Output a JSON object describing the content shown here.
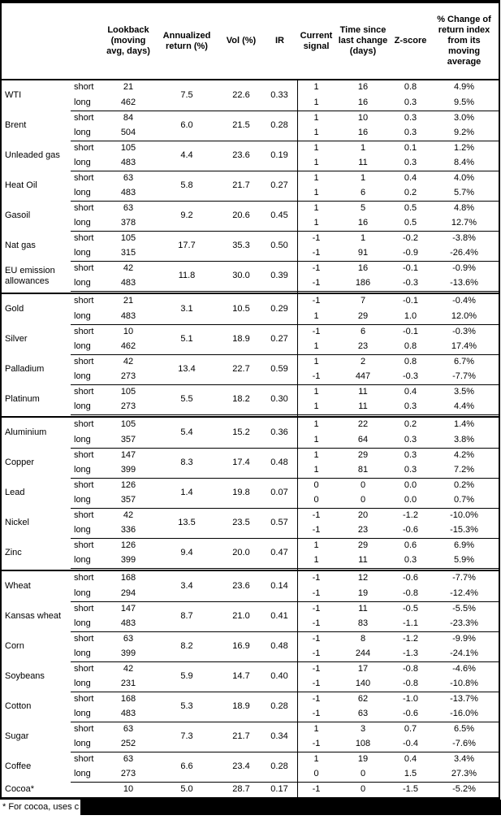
{
  "header": {
    "name": "",
    "side": "",
    "lookback": "Lookback\n(moving\navg, days)",
    "annualized": "Annualized\nreturn (%)",
    "vol": "Vol (%)",
    "ir": "IR",
    "signal": "Current\nsignal",
    "time_since": "Time since\nlast change\n(days)",
    "zscore": "Z-score",
    "pct_change": "% Change of\nreturn index\nfrom its\nmoving\naverage"
  },
  "sections": [
    [
      {
        "name": "WTI",
        "annualized": "7.5",
        "vol": "22.6",
        "ir": "0.33",
        "rows": [
          {
            "side": "short",
            "lookback": "21",
            "signal": "1",
            "time_since": "16",
            "zscore": "0.8",
            "pct_change": "4.9%"
          },
          {
            "side": "long",
            "lookback": "462",
            "signal": "1",
            "time_since": "16",
            "zscore": "0.3",
            "pct_change": "9.5%"
          }
        ]
      },
      {
        "name": "Brent",
        "annualized": "6.0",
        "vol": "21.5",
        "ir": "0.28",
        "rows": [
          {
            "side": "short",
            "lookback": "84",
            "signal": "1",
            "time_since": "10",
            "zscore": "0.3",
            "pct_change": "3.0%"
          },
          {
            "side": "long",
            "lookback": "504",
            "signal": "1",
            "time_since": "16",
            "zscore": "0.3",
            "pct_change": "9.2%"
          }
        ]
      },
      {
        "name": "Unleaded gas",
        "annualized": "4.4",
        "vol": "23.6",
        "ir": "0.19",
        "rows": [
          {
            "side": "short",
            "lookback": "105",
            "signal": "1",
            "time_since": "1",
            "zscore": "0.1",
            "pct_change": "1.2%"
          },
          {
            "side": "long",
            "lookback": "483",
            "signal": "1",
            "time_since": "11",
            "zscore": "0.3",
            "pct_change": "8.4%"
          }
        ]
      },
      {
        "name": "Heat Oil",
        "annualized": "5.8",
        "vol": "21.7",
        "ir": "0.27",
        "rows": [
          {
            "side": "short",
            "lookback": "63",
            "signal": "1",
            "time_since": "1",
            "zscore": "0.4",
            "pct_change": "4.0%"
          },
          {
            "side": "long",
            "lookback": "483",
            "signal": "1",
            "time_since": "6",
            "zscore": "0.2",
            "pct_change": "5.7%"
          }
        ]
      },
      {
        "name": "Gasoil",
        "annualized": "9.2",
        "vol": "20.6",
        "ir": "0.45",
        "rows": [
          {
            "side": "short",
            "lookback": "63",
            "signal": "1",
            "time_since": "5",
            "zscore": "0.5",
            "pct_change": "4.8%"
          },
          {
            "side": "long",
            "lookback": "378",
            "signal": "1",
            "time_since": "16",
            "zscore": "0.5",
            "pct_change": "12.7%"
          }
        ]
      },
      {
        "name": "Nat gas",
        "annualized": "17.7",
        "vol": "35.3",
        "ir": "0.50",
        "rows": [
          {
            "side": "short",
            "lookback": "105",
            "signal": "-1",
            "time_since": "1",
            "zscore": "-0.2",
            "pct_change": "-3.8%"
          },
          {
            "side": "long",
            "lookback": "315",
            "signal": "-1",
            "time_since": "91",
            "zscore": "-0.9",
            "pct_change": "-26.4%"
          }
        ]
      },
      {
        "name": "EU emission allowances",
        "annualized": "11.8",
        "vol": "30.0",
        "ir": "0.39",
        "rows": [
          {
            "side": "short",
            "lookback": "42",
            "signal": "-1",
            "time_since": "16",
            "zscore": "-0.1",
            "pct_change": "-0.9%"
          },
          {
            "side": "long",
            "lookback": "483",
            "signal": "-1",
            "time_since": "186",
            "zscore": "-0.3",
            "pct_change": "-13.6%"
          }
        ]
      }
    ],
    [
      {
        "name": "Gold",
        "annualized": "3.1",
        "vol": "10.5",
        "ir": "0.29",
        "rows": [
          {
            "side": "short",
            "lookback": "21",
            "signal": "-1",
            "time_since": "7",
            "zscore": "-0.1",
            "pct_change": "-0.4%"
          },
          {
            "side": "long",
            "lookback": "483",
            "signal": "1",
            "time_since": "29",
            "zscore": "1.0",
            "pct_change": "12.0%"
          }
        ]
      },
      {
        "name": "Silver",
        "annualized": "5.1",
        "vol": "18.9",
        "ir": "0.27",
        "rows": [
          {
            "side": "short",
            "lookback": "10",
            "signal": "-1",
            "time_since": "6",
            "zscore": "-0.1",
            "pct_change": "-0.3%"
          },
          {
            "side": "long",
            "lookback": "462",
            "signal": "1",
            "time_since": "23",
            "zscore": "0.8",
            "pct_change": "17.4%"
          }
        ]
      },
      {
        "name": "Palladium",
        "annualized": "13.4",
        "vol": "22.7",
        "ir": "0.59",
        "rows": [
          {
            "side": "short",
            "lookback": "42",
            "signal": "1",
            "time_since": "2",
            "zscore": "0.8",
            "pct_change": "6.7%"
          },
          {
            "side": "long",
            "lookback": "273",
            "signal": "-1",
            "time_since": "447",
            "zscore": "-0.3",
            "pct_change": "-7.7%"
          }
        ]
      },
      {
        "name": "Platinum",
        "annualized": "5.5",
        "vol": "18.2",
        "ir": "0.30",
        "rows": [
          {
            "side": "short",
            "lookback": "105",
            "signal": "1",
            "time_since": "11",
            "zscore": "0.4",
            "pct_change": "3.5%"
          },
          {
            "side": "long",
            "lookback": "273",
            "signal": "1",
            "time_since": "11",
            "zscore": "0.3",
            "pct_change": "4.4%"
          }
        ]
      }
    ],
    [
      {
        "name": "Aluminium",
        "annualized": "5.4",
        "vol": "15.2",
        "ir": "0.36",
        "rows": [
          {
            "side": "short",
            "lookback": "105",
            "signal": "1",
            "time_since": "22",
            "zscore": "0.2",
            "pct_change": "1.4%"
          },
          {
            "side": "long",
            "lookback": "357",
            "signal": "1",
            "time_since": "64",
            "zscore": "0.3",
            "pct_change": "3.8%"
          }
        ]
      },
      {
        "name": "Copper",
        "annualized": "8.3",
        "vol": "17.4",
        "ir": "0.48",
        "rows": [
          {
            "side": "short",
            "lookback": "147",
            "signal": "1",
            "time_since": "29",
            "zscore": "0.3",
            "pct_change": "4.2%"
          },
          {
            "side": "long",
            "lookback": "399",
            "signal": "1",
            "time_since": "81",
            "zscore": "0.3",
            "pct_change": "7.2%"
          }
        ]
      },
      {
        "name": "Lead",
        "annualized": "1.4",
        "vol": "19.8",
        "ir": "0.07",
        "rows": [
          {
            "side": "short",
            "lookback": "126",
            "signal": "0",
            "time_since": "0",
            "zscore": "0.0",
            "pct_change": "0.2%"
          },
          {
            "side": "long",
            "lookback": "357",
            "signal": "0",
            "time_since": "0",
            "zscore": "0.0",
            "pct_change": "0.7%"
          }
        ]
      },
      {
        "name": "Nickel",
        "annualized": "13.5",
        "vol": "23.5",
        "ir": "0.57",
        "rows": [
          {
            "side": "short",
            "lookback": "42",
            "signal": "-1",
            "time_since": "20",
            "zscore": "-1.2",
            "pct_change": "-10.0%"
          },
          {
            "side": "long",
            "lookback": "336",
            "signal": "-1",
            "time_since": "23",
            "zscore": "-0.6",
            "pct_change": "-15.3%"
          }
        ]
      },
      {
        "name": "Zinc",
        "annualized": "9.4",
        "vol": "20.0",
        "ir": "0.47",
        "rows": [
          {
            "side": "short",
            "lookback": "126",
            "signal": "1",
            "time_since": "29",
            "zscore": "0.6",
            "pct_change": "6.9%"
          },
          {
            "side": "long",
            "lookback": "399",
            "signal": "1",
            "time_since": "11",
            "zscore": "0.3",
            "pct_change": "5.9%"
          }
        ]
      }
    ],
    [
      {
        "name": "Wheat",
        "annualized": "3.4",
        "vol": "23.6",
        "ir": "0.14",
        "rows": [
          {
            "side": "short",
            "lookback": "168",
            "signal": "-1",
            "time_since": "12",
            "zscore": "-0.6",
            "pct_change": "-7.7%"
          },
          {
            "side": "long",
            "lookback": "294",
            "signal": "-1",
            "time_since": "19",
            "zscore": "-0.8",
            "pct_change": "-12.4%"
          }
        ]
      },
      {
        "name": "Kansas wheat",
        "annualized": "8.7",
        "vol": "21.0",
        "ir": "0.41",
        "rows": [
          {
            "side": "short",
            "lookback": "147",
            "signal": "-1",
            "time_since": "11",
            "zscore": "-0.5",
            "pct_change": "-5.5%"
          },
          {
            "side": "long",
            "lookback": "483",
            "signal": "-1",
            "time_since": "83",
            "zscore": "-1.1",
            "pct_change": "-23.3%"
          }
        ]
      },
      {
        "name": "Corn",
        "annualized": "8.2",
        "vol": "16.9",
        "ir": "0.48",
        "rows": [
          {
            "side": "short",
            "lookback": "63",
            "signal": "-1",
            "time_since": "8",
            "zscore": "-1.2",
            "pct_change": "-9.9%"
          },
          {
            "side": "long",
            "lookback": "399",
            "signal": "-1",
            "time_since": "244",
            "zscore": "-1.3",
            "pct_change": "-24.1%"
          }
        ]
      },
      {
        "name": "Soybeans",
        "annualized": "5.9",
        "vol": "14.7",
        "ir": "0.40",
        "rows": [
          {
            "side": "short",
            "lookback": "42",
            "signal": "-1",
            "time_since": "17",
            "zscore": "-0.8",
            "pct_change": "-4.6%"
          },
          {
            "side": "long",
            "lookback": "231",
            "signal": "-1",
            "time_since": "140",
            "zscore": "-0.8",
            "pct_change": "-10.8%"
          }
        ]
      },
      {
        "name": "Cotton",
        "annualized": "5.3",
        "vol": "18.9",
        "ir": "0.28",
        "rows": [
          {
            "side": "short",
            "lookback": "168",
            "signal": "-1",
            "time_since": "62",
            "zscore": "-1.0",
            "pct_change": "-13.7%"
          },
          {
            "side": "long",
            "lookback": "483",
            "signal": "-1",
            "time_since": "63",
            "zscore": "-0.6",
            "pct_change": "-16.0%"
          }
        ]
      },
      {
        "name": "Sugar",
        "annualized": "7.3",
        "vol": "21.7",
        "ir": "0.34",
        "rows": [
          {
            "side": "short",
            "lookback": "63",
            "signal": "1",
            "time_since": "3",
            "zscore": "0.7",
            "pct_change": "6.5%"
          },
          {
            "side": "long",
            "lookback": "252",
            "signal": "-1",
            "time_since": "108",
            "zscore": "-0.4",
            "pct_change": "-7.6%"
          }
        ]
      },
      {
        "name": "Coffee",
        "annualized": "6.6",
        "vol": "23.4",
        "ir": "0.28",
        "rows": [
          {
            "side": "short",
            "lookback": "63",
            "signal": "1",
            "time_since": "19",
            "zscore": "0.4",
            "pct_change": "3.4%"
          },
          {
            "side": "long",
            "lookback": "273",
            "signal": "0",
            "time_since": "0",
            "zscore": "1.5",
            "pct_change": "27.3%"
          }
        ]
      },
      {
        "name": "Cocoa*",
        "annualized": "5.0",
        "vol": "28.7",
        "ir": "0.17",
        "rows": [
          {
            "side": "",
            "lookback": "10",
            "signal": "-1",
            "time_since": "0",
            "zscore": "-1.5",
            "pct_change": "-5.2%"
          }
        ]
      }
    ]
  ],
  "footnote": {
    "text": "* For cocoa, uses c"
  }
}
